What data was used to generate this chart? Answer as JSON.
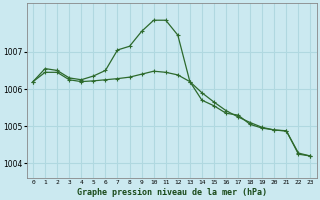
{
  "title": "Graphe pression niveau de la mer (hPa)",
  "background_color": "#cbe9f0",
  "grid_color": "#b0d8e0",
  "line_color": "#2d6a2d",
  "xlim": [
    -0.5,
    23.5
  ],
  "ylim": [
    1003.6,
    1008.3
  ],
  "yticks": [
    1004,
    1005,
    1006,
    1007
  ],
  "xticks": [
    0,
    1,
    2,
    3,
    4,
    5,
    6,
    7,
    8,
    9,
    10,
    11,
    12,
    13,
    14,
    15,
    16,
    17,
    18,
    19,
    20,
    21,
    22,
    23
  ],
  "series1_x": [
    0,
    1,
    2,
    3,
    4,
    5,
    6,
    7,
    8,
    9,
    10,
    11,
    12,
    13,
    14,
    15,
    16,
    17,
    18,
    19,
    20,
    21,
    22,
    23
  ],
  "series1_y": [
    1006.2,
    1006.55,
    1006.5,
    1006.3,
    1006.25,
    1006.35,
    1006.5,
    1007.05,
    1007.15,
    1007.55,
    1007.85,
    1007.85,
    1007.45,
    1006.2,
    1005.7,
    1005.55,
    1005.35,
    1005.3,
    1005.05,
    1004.95,
    1004.9,
    1004.88,
    1004.25,
    1004.2
  ],
  "series2_x": [
    0,
    1,
    2,
    3,
    4,
    5,
    6,
    7,
    8,
    9,
    10,
    11,
    12,
    13,
    14,
    15,
    16,
    17,
    18,
    19,
    20,
    21,
    22,
    23
  ],
  "series2_y": [
    1006.2,
    1006.45,
    1006.45,
    1006.25,
    1006.2,
    1006.22,
    1006.25,
    1006.28,
    1006.32,
    1006.4,
    1006.48,
    1006.45,
    1006.38,
    1006.2,
    1005.9,
    1005.65,
    1005.42,
    1005.25,
    1005.1,
    1004.97,
    1004.9,
    1004.87,
    1004.28,
    1004.2
  ]
}
